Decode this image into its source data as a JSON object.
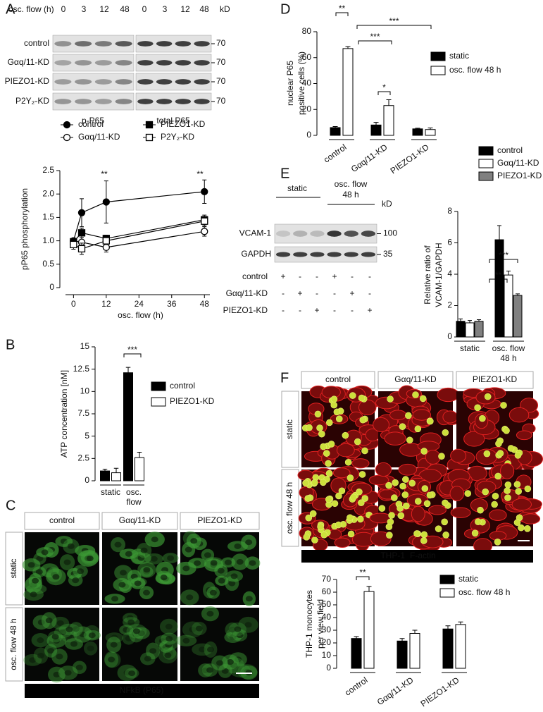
{
  "panel_labels": [
    "A",
    "B",
    "C",
    "D",
    "E",
    "F"
  ],
  "blot_A": {
    "condition_label": "osc. flow (h)",
    "lanes": [
      "0",
      "3",
      "12",
      "48"
    ],
    "kd_label": "kD",
    "rows": [
      "control",
      "Gαq/11-KD",
      "PIEZO1-KD",
      "P2Y₂-KD"
    ],
    "markers": [
      "70",
      "70",
      "70",
      "70"
    ],
    "blots": [
      "p-P65",
      "total P65"
    ]
  },
  "blot_E": {
    "groups": [
      "static",
      "osc. flow 48 h"
    ],
    "kd_label": "kD",
    "rows": [
      "VCAM-1",
      "GAPDH"
    ],
    "markers": [
      "100",
      "35"
    ],
    "treatments": [
      {
        "label": "control",
        "signs": [
          "+",
          "-",
          "-",
          "+",
          "-",
          "-"
        ]
      },
      {
        "label": "Gαq/11-KD",
        "signs": [
          "-",
          "+",
          "-",
          "-",
          "+",
          "-"
        ]
      },
      {
        "label": "PIEZO1-KD",
        "signs": [
          "-",
          "-",
          "+",
          "-",
          "-",
          "+"
        ]
      }
    ]
  },
  "micrographs_C": {
    "columns": [
      "control",
      "Gαq/11-KD",
      "PIEZO1-KD"
    ],
    "rows": [
      "static",
      "osc. flow 48 h"
    ],
    "stain": "NFkB (P65)"
  },
  "micrographs_F": {
    "columns": [
      "control",
      "Gαq/11-KD",
      "PIEZO1-KD"
    ],
    "rows": [
      "static",
      "osc. flow 48 h"
    ],
    "stains": [
      "THP-1",
      "F-actin"
    ]
  },
  "chart_data": [
    {
      "type": "line",
      "xlabel": "osc. flow (h)",
      "ylabel": "pP65 phosphorylation",
      "x": [
        0,
        3,
        12,
        48
      ],
      "series": [
        {
          "name": "control",
          "color": "#000000",
          "marker": "circle",
          "fill": "#000000",
          "values": [
            1.0,
            1.6,
            1.83,
            2.05
          ],
          "errors": [
            0.05,
            0.3,
            0.45,
            0.25
          ]
        },
        {
          "name": "Gαq/11-KD",
          "color": "#000000",
          "marker": "circle",
          "fill": "#ffffff",
          "values": [
            1.0,
            0.97,
            0.86,
            1.2
          ],
          "errors": [
            0.05,
            0.1,
            0.1,
            0.1
          ]
        },
        {
          "name": "PIEZO1-KD",
          "color": "#000000",
          "marker": "square",
          "fill": "#000000",
          "values": [
            0.98,
            1.17,
            1.05,
            1.45
          ],
          "errors": [
            0.05,
            0.1,
            0.07,
            0.1
          ]
        },
        {
          "name": "P2Y₂-KD",
          "color": "#000000",
          "marker": "square",
          "fill": "#ffffff",
          "values": [
            0.92,
            0.83,
            1.0,
            1.42
          ],
          "errors": [
            0.1,
            0.12,
            0.08,
            0.1
          ]
        }
      ],
      "xlim": [
        -5,
        50
      ],
      "xticks": [
        0,
        12,
        24,
        36,
        48
      ],
      "ylim": [
        0,
        2.5
      ],
      "yticks": [
        0,
        0.5,
        {
          "value": 1,
          "label": "1.0"
        },
        1.5,
        {
          "value": 2,
          "label": "2.0"
        },
        2.5
      ],
      "annotations": [
        "**",
        "**"
      ]
    },
    {
      "type": "bar",
      "ylabel": [
        "ATP concentration [nM]"
      ],
      "categories": [
        "static",
        "osc. flow"
      ],
      "series": [
        {
          "name": "control",
          "color": "#000000",
          "values": [
            1.1,
            12.1
          ],
          "errors": [
            0.2,
            0.6
          ]
        },
        {
          "name": "PIEZO1-KD",
          "color": "#ffffff",
          "values": [
            0.9,
            2.6
          ],
          "errors": [
            0.5,
            0.6
          ]
        }
      ],
      "ylim": [
        0,
        15
      ],
      "yticks": [
        0,
        2.5,
        5,
        7.5,
        10,
        12.5,
        15
      ],
      "annotations": [
        "***"
      ]
    },
    {
      "type": "bar",
      "ylabel": [
        "nuclear P65",
        "positive cells (%)"
      ],
      "categories": [
        "control",
        "Gαq/11-KD",
        "PIEZO1-KD"
      ],
      "series": [
        {
          "name": "static",
          "color": "#000000",
          "values": [
            6,
            8,
            5
          ],
          "errors": [
            0.8,
            2,
            0.5
          ]
        },
        {
          "name": "osc. flow 48 h",
          "color": "#ffffff",
          "values": [
            67,
            23,
            4.5
          ],
          "errors": [
            1.5,
            4.5,
            1.2
          ]
        }
      ],
      "ylim": [
        0,
        80
      ],
      "yticks": [
        0,
        20,
        40,
        60,
        80
      ],
      "annotations": [
        "**",
        "***",
        "***",
        "*"
      ]
    },
    {
      "type": "bar",
      "ylabel": [
        "Relative ratio of",
        "VCAM-1/GAPDH"
      ],
      "categories": [
        "static",
        "osc. flow 48 h"
      ],
      "series": [
        {
          "name": "control",
          "color": "#000000",
          "values": [
            1.0,
            6.2
          ],
          "errors": [
            0.15,
            0.9
          ]
        },
        {
          "name": "Gαq/11-KD",
          "color": "#ffffff",
          "values": [
            0.9,
            3.95
          ],
          "errors": [
            0.15,
            0.25
          ]
        },
        {
          "name": "PIEZO1-KD",
          "color": "#808080",
          "values": [
            1.0,
            2.65
          ],
          "errors": [
            0.1,
            0.1
          ]
        }
      ],
      "ylim": [
        0,
        8
      ],
      "yticks": [
        0,
        2,
        4,
        6,
        8
      ],
      "annotations": [
        "**",
        "***"
      ]
    },
    {
      "type": "bar",
      "ylabel": [
        "THP-1 monocytes",
        "per view field"
      ],
      "categories": [
        "control",
        "Gαq/11-KD",
        "PIEZO1-KD"
      ],
      "series": [
        {
          "name": "static",
          "color": "#000000",
          "values": [
            23.5,
            21.5,
            31
          ],
          "errors": [
            1.5,
            2,
            2.5
          ]
        },
        {
          "name": "osc. flow 48 h",
          "color": "#ffffff",
          "values": [
            60.5,
            27.5,
            34.5
          ],
          "errors": [
            4,
            2.5,
            2
          ]
        }
      ],
      "ylim": [
        0,
        70
      ],
      "yticks": [
        0,
        10,
        20,
        30,
        40,
        50,
        60,
        70
      ],
      "annotations": [
        "**"
      ]
    }
  ]
}
